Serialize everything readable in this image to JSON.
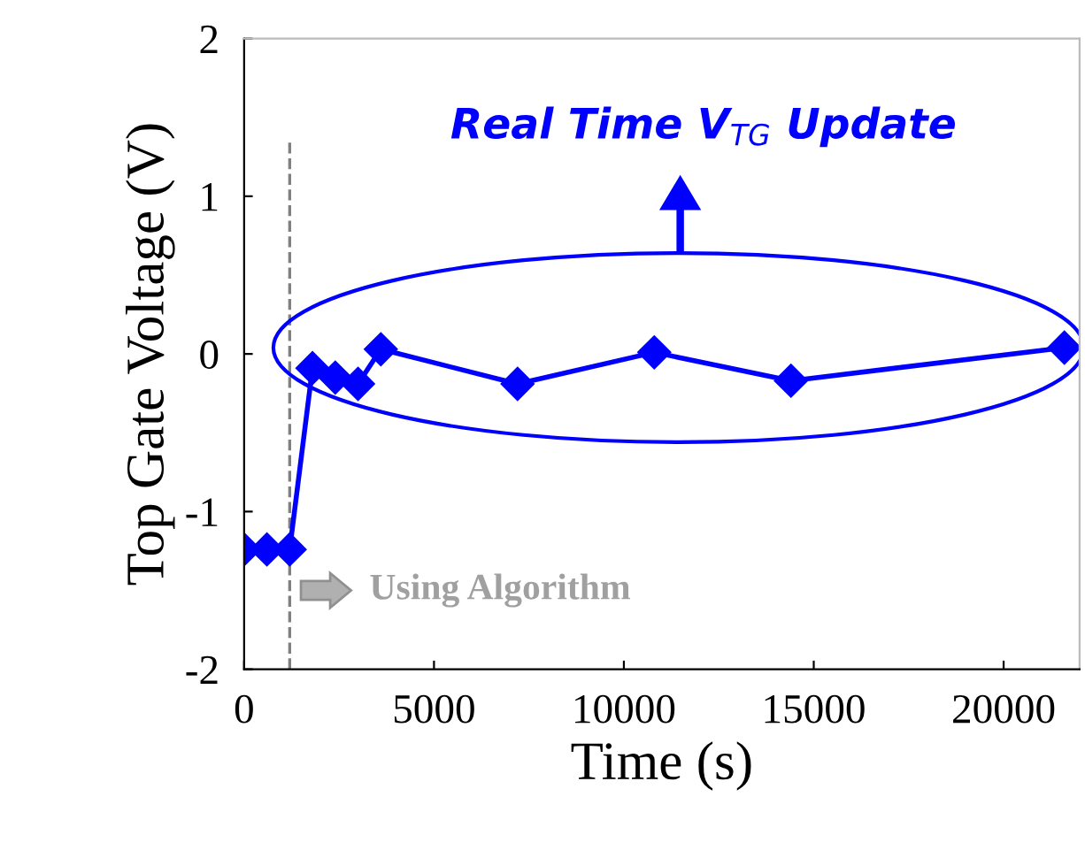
{
  "chart_data": {
    "type": "line",
    "xlabel": "Time (s)",
    "ylabel": "Top Gate Voltage (V)",
    "x": [
      0,
      600,
      1200,
      1800,
      2400,
      3000,
      3600,
      7200,
      10800,
      14400,
      21600
    ],
    "series": [
      {
        "color": "#0000ff",
        "values": [
          -1.24,
          -1.24,
          -1.24,
          -0.09,
          -0.15,
          -0.19,
          0.03,
          -0.19,
          0.01,
          -0.17,
          0.04
        ]
      }
    ],
    "marker": "diamond",
    "line_style": "solid",
    "grid": false,
    "legend": false,
    "xlim": [
      0,
      22000
    ],
    "ylim": [
      -2,
      2
    ],
    "xticks": [
      0,
      5000,
      10000,
      15000,
      20000
    ],
    "yticks": [
      -2,
      -1,
      0,
      1,
      2
    ],
    "ref_lines": [
      {
        "axis": "x",
        "value": 1200,
        "color": "#808080",
        "line_style": "dashed"
      }
    ],
    "annotations": [
      "Real Time V$_{TG}$ Update",
      "Using Algorithm"
    ]
  }
}
